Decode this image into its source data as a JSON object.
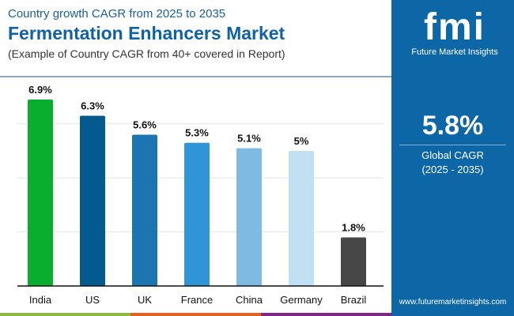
{
  "header": {
    "subtitle": "Country growth CAGR from 2025 to 2035",
    "title": "Fermentation Enhancers Market",
    "note": "(Example of Country CAGR from 40+ covered in Report)"
  },
  "panel": {
    "logo_text": "fmi",
    "brand": "Future Market Insights",
    "global_cagr": "5.8%",
    "global_label": "Global CAGR",
    "period": "(2025 - 2035)",
    "url": "www.futuremarketinsights.com",
    "color": "#0d66a6"
  },
  "stripe_colors": [
    "#8bbb45",
    "#e3622b",
    "#7d2a83"
  ],
  "chart_data": {
    "type": "bar",
    "categories": [
      "India",
      "US",
      "UK",
      "France",
      "China",
      "Germany",
      "Brazil"
    ],
    "values": [
      6.9,
      6.3,
      5.6,
      5.3,
      5.1,
      5.0,
      1.8
    ],
    "data_labels": [
      "6.9%",
      "6.3%",
      "5.6%",
      "5.3%",
      "5.1%",
      "5%",
      "1.8%"
    ],
    "colors": [
      "#0aae2e",
      "#045a8f",
      "#1b75b1",
      "#3095d6",
      "#7fbae2",
      "#c2e0f3",
      "#474747"
    ],
    "ylim": [
      0,
      7
    ],
    "gridlines": [
      2,
      4,
      6
    ],
    "grid": true,
    "xlabel": "",
    "ylabel": ""
  }
}
